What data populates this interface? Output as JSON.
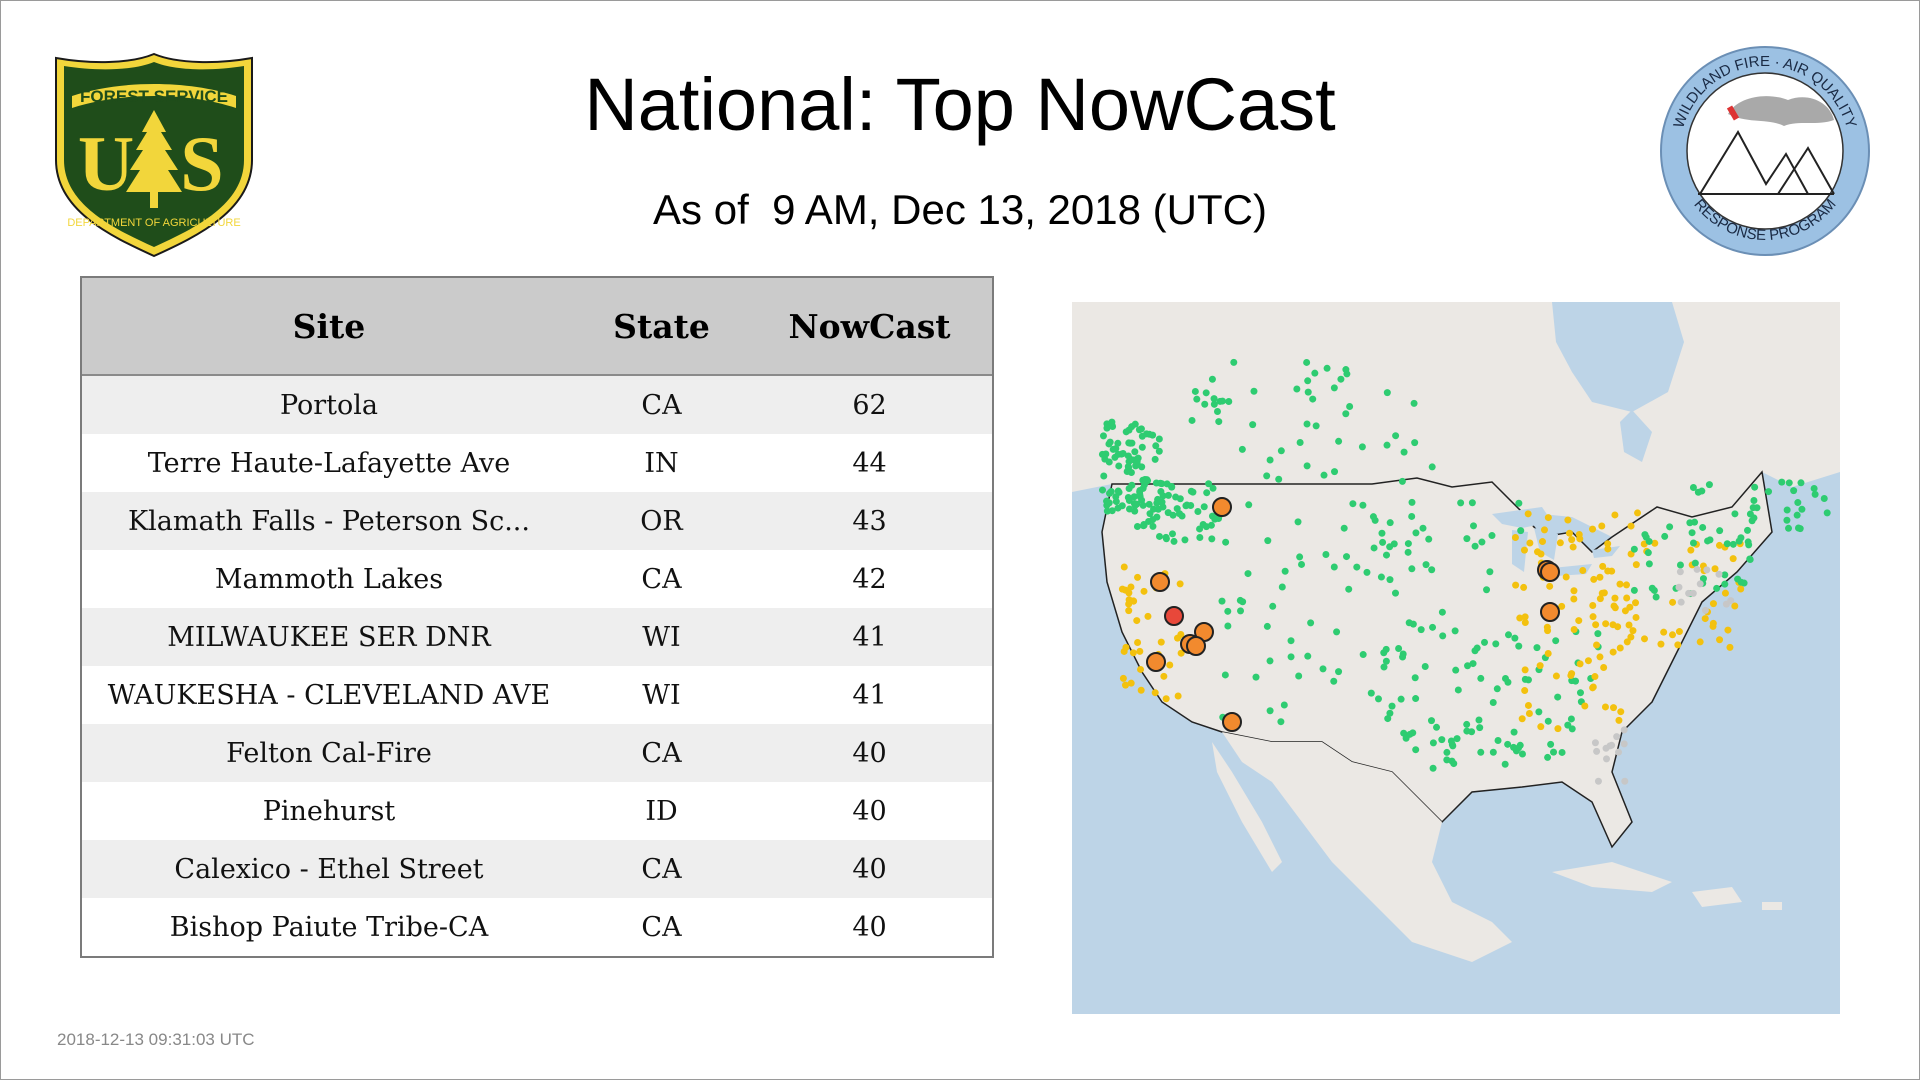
{
  "header": {
    "title": "National: Top NowCast",
    "subtitle": "As of  9 AM, Dec 13, 2018 (UTC)"
  },
  "logos": {
    "forest_service": {
      "top_text": "FOREST SERVICE",
      "letters": "US",
      "bottom_text": "DEPARTMENT OF AGRICULTURE",
      "colors": {
        "shield": "#1f4d1a",
        "gold": "#f2d63b"
      }
    },
    "wildland_fire": {
      "top_text": "WILDLAND FIRE · AIR QUALITY",
      "bottom_text": "RESPONSE PROGRAM",
      "colors": {
        "ring": "#9cc1e3"
      }
    }
  },
  "table": {
    "columns": [
      "Site",
      "State",
      "NowCast"
    ],
    "rows": [
      {
        "site": "Portola",
        "state": "CA",
        "nowcast": "62"
      },
      {
        "site": "Terre Haute-Lafayette Ave",
        "state": "IN",
        "nowcast": "44"
      },
      {
        "site": "Klamath Falls - Peterson Sc...",
        "state": "OR",
        "nowcast": "43"
      },
      {
        "site": "Mammoth Lakes",
        "state": "CA",
        "nowcast": "42"
      },
      {
        "site": "MILWAUKEE SER DNR",
        "state": "WI",
        "nowcast": "41"
      },
      {
        "site": "WAUKESHA - CLEVELAND AVE",
        "state": "WI",
        "nowcast": "41"
      },
      {
        "site": "Felton Cal-Fire",
        "state": "CA",
        "nowcast": "40"
      },
      {
        "site": "Pinehurst",
        "state": "ID",
        "nowcast": "40"
      },
      {
        "site": "Calexico - Ethel Street",
        "state": "CA",
        "nowcast": "40"
      },
      {
        "site": "Bishop Paiute Tribe-CA",
        "state": "CA",
        "nowcast": "40"
      }
    ]
  },
  "map": {
    "colors": {
      "water": "#bdd4e7",
      "land": "#ebe8e4",
      "good": "#2ecc71",
      "moderate": "#f3c10e",
      "usg": "#f28a2e",
      "unhealthy": "#e8483a",
      "nodata": "#c7c7c7"
    }
  },
  "footer": {
    "timestamp": "2018-12-13 09:31:03 UTC"
  }
}
